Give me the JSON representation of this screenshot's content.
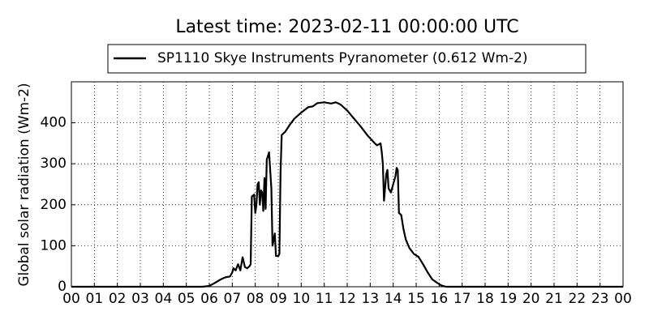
{
  "chart_data": {
    "type": "line",
    "title": "Latest time: 2023-02-11 00:00:00 UTC",
    "ylabel": "Global solar radiation (Wm-2)",
    "series": [
      {
        "name": "SP1110 Skye Instruments Pyranometer (0.612 Wm-2)",
        "color": "#000000",
        "x": [
          0,
          5.7,
          6.0,
          6.2,
          6.5,
          6.7,
          6.9,
          7.0,
          7.05,
          7.15,
          7.25,
          7.35,
          7.45,
          7.55,
          7.65,
          7.75,
          7.8,
          7.85,
          7.95,
          8.0,
          8.05,
          8.1,
          8.15,
          8.2,
          8.25,
          8.3,
          8.35,
          8.4,
          8.45,
          8.5,
          8.6,
          8.7,
          8.75,
          8.85,
          8.9,
          9.0,
          9.05,
          9.1,
          9.15,
          9.3,
          9.5,
          9.7,
          10.0,
          10.3,
          10.5,
          10.7,
          11.0,
          11.3,
          11.5,
          11.7,
          12.0,
          12.3,
          12.6,
          12.9,
          13.2,
          13.3,
          13.45,
          13.5,
          13.55,
          13.6,
          13.7,
          13.75,
          13.8,
          13.9,
          14.0,
          14.1,
          14.15,
          14.2,
          14.25,
          14.35,
          14.45,
          14.55,
          14.7,
          14.9,
          15.1,
          15.3,
          15.5,
          15.7,
          15.9,
          16.1,
          16.3,
          24
        ],
        "values": [
          0,
          0,
          2,
          8,
          18,
          23,
          25,
          35,
          45,
          40,
          55,
          40,
          72,
          48,
          45,
          50,
          55,
          220,
          225,
          180,
          200,
          250,
          255,
          200,
          235,
          230,
          185,
          265,
          190,
          310,
          328,
          240,
          100,
          130,
          75,
          75,
          80,
          280,
          370,
          378,
          395,
          410,
          425,
          438,
          440,
          448,
          450,
          447,
          450,
          445,
          430,
          410,
          390,
          368,
          350,
          345,
          350,
          330,
          300,
          210,
          275,
          285,
          240,
          230,
          250,
          270,
          290,
          285,
          180,
          175,
          140,
          115,
          95,
          80,
          73,
          55,
          35,
          18,
          10,
          3,
          0,
          0
        ]
      }
    ],
    "xlim": [
      0,
      24
    ],
    "xticks": [
      {
        "value": 0,
        "label": "00"
      },
      {
        "value": 1,
        "label": "01"
      },
      {
        "value": 2,
        "label": "02"
      },
      {
        "value": 3,
        "label": "03"
      },
      {
        "value": 4,
        "label": "04"
      },
      {
        "value": 5,
        "label": "05"
      },
      {
        "value": 6,
        "label": "06"
      },
      {
        "value": 7,
        "label": "07"
      },
      {
        "value": 8,
        "label": "08"
      },
      {
        "value": 9,
        "label": "09"
      },
      {
        "value": 10,
        "label": "10"
      },
      {
        "value": 11,
        "label": "11"
      },
      {
        "value": 12,
        "label": "12"
      },
      {
        "value": 13,
        "label": "13"
      },
      {
        "value": 14,
        "label": "14"
      },
      {
        "value": 15,
        "label": "15"
      },
      {
        "value": 16,
        "label": "16"
      },
      {
        "value": 17,
        "label": "17"
      },
      {
        "value": 18,
        "label": "18"
      },
      {
        "value": 19,
        "label": "19"
      },
      {
        "value": 20,
        "label": "20"
      },
      {
        "value": 21,
        "label": "21"
      },
      {
        "value": 22,
        "label": "22"
      },
      {
        "value": 23,
        "label": "23"
      },
      {
        "value": 24,
        "label": "00"
      }
    ],
    "ylim": [
      0,
      500
    ],
    "yticks": [
      0,
      100,
      200,
      300,
      400
    ],
    "grid": true
  }
}
